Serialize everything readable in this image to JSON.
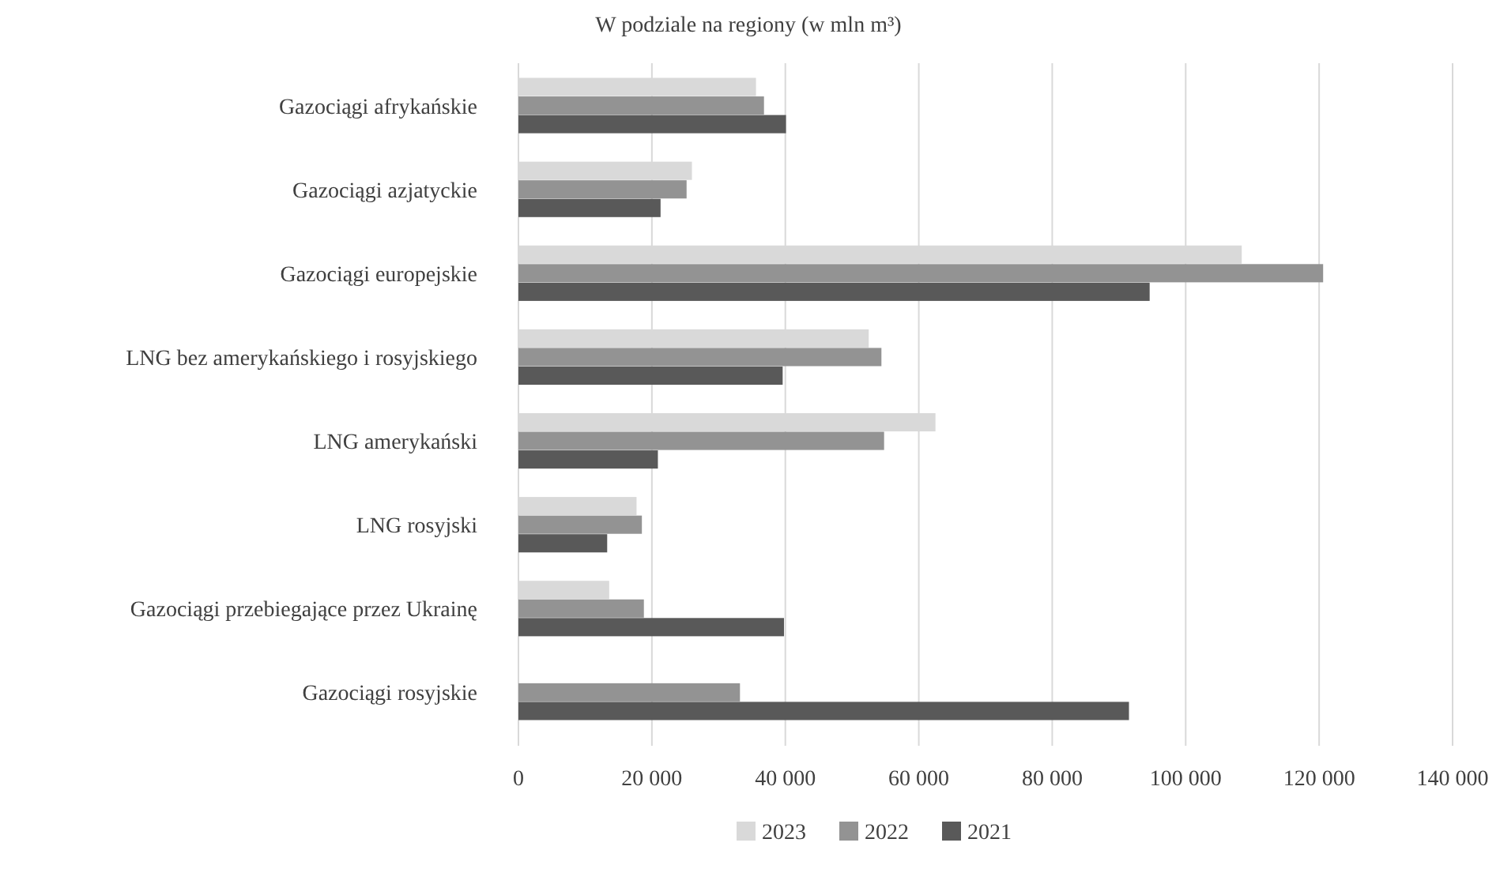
{
  "chart_data": {
    "type": "bar",
    "orientation": "horizontal",
    "title": "W podziale na regiony (w mln m³)",
    "categories": [
      "Gazociągi afrykańskie",
      "Gazociągi azjatyckie",
      "Gazociągi europejskie",
      "LNG bez amerykańskiego i rosyjskiego",
      "LNG amerykański",
      "LNG rosyjski",
      "Gazociągi przebiegające przez Ukrainę",
      "Gazociągi rosyjskie"
    ],
    "series": [
      {
        "name": "2023",
        "color": "#d9d9d9",
        "values": [
          35600,
          26000,
          108400,
          52500,
          62500,
          17700,
          13600,
          null
        ]
      },
      {
        "name": "2022",
        "color": "#939393",
        "values": [
          36800,
          25200,
          120600,
          54400,
          54800,
          18500,
          18800,
          33200
        ]
      },
      {
        "name": "2021",
        "color": "#595959",
        "values": [
          40100,
          21300,
          94600,
          39600,
          20900,
          13300,
          39800,
          91500
        ]
      }
    ],
    "xlim": [
      0,
      140000
    ],
    "xticks": [
      {
        "value": 0,
        "label": "0"
      },
      {
        "value": 20000,
        "label": "20 000"
      },
      {
        "value": 40000,
        "label": "40 000"
      },
      {
        "value": 60000,
        "label": "60 000"
      },
      {
        "value": 80000,
        "label": "80 000"
      },
      {
        "value": 100000,
        "label": "100 000"
      },
      {
        "value": 120000,
        "label": "120 000"
      },
      {
        "value": 140000,
        "label": "140 000"
      }
    ],
    "grid": "x",
    "legend": "bottom"
  }
}
